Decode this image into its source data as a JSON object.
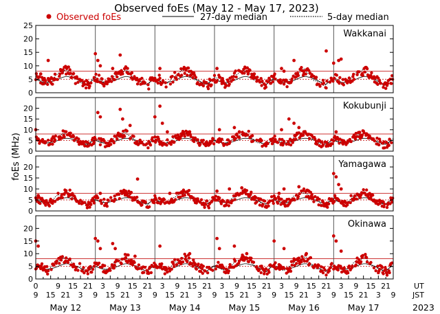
{
  "chart_data": {
    "type": "scatter",
    "title": "Observed foEs (May 12 - May 17, 2023)",
    "ylabel": "foEs (MHz)",
    "legend": {
      "observed": "Observed foEs",
      "median27": "27-day median",
      "median5": "5-day median",
      "placement": "top"
    },
    "colors": {
      "observed": "#cc0000",
      "median_line": "#000000",
      "threshold": "#cc3333"
    },
    "ylim": [
      0,
      25
    ],
    "yticks": [
      0,
      5,
      10,
      15,
      20,
      25
    ],
    "xlim_hours": [
      0,
      144
    ],
    "x_ticks_ut": [
      "0",
      "9",
      "15",
      "21",
      "3",
      "9",
      "15",
      "21",
      "3",
      "9",
      "15",
      "21",
      "3",
      "9",
      "15",
      "21",
      "3",
      "9",
      "15",
      "21",
      "3",
      "9",
      "15",
      "21",
      "3",
      "9"
    ],
    "x_ticks_jst": [
      "9",
      "15",
      "21",
      "3",
      "9",
      "15",
      "21",
      "3",
      "9",
      "15",
      "21",
      "3",
      "9",
      "15",
      "21",
      "3",
      "9",
      "15",
      "21",
      "3",
      "9",
      "15",
      "21",
      "3",
      "9"
    ],
    "ut_label": "UT",
    "jst_label": "JST",
    "days": [
      "May 12",
      "May 13",
      "May 14",
      "May 15",
      "May 16",
      "May 17"
    ],
    "year": "2023",
    "threshold_levels": [
      5,
      8
    ],
    "grid": false,
    "panels": [
      {
        "station": "Wakkanai",
        "ylim": [
          0,
          25
        ],
        "yticks": [
          0,
          5,
          10,
          15,
          20,
          25
        ],
        "median27_hourly": [
          5,
          4.6,
          4.2,
          3.9,
          3.8,
          3.9,
          4.1,
          4.3,
          4.6,
          5,
          5.4,
          5.8,
          6,
          6,
          5.8,
          5.5,
          5.2,
          4.8,
          4.3,
          3.8,
          3.3,
          3.2,
          4,
          4.8
        ],
        "median5_hourly": [
          5.5,
          5,
          4.5,
          4,
          3.5,
          3.8,
          4.5,
          5.5,
          6.5,
          7,
          7.5,
          8,
          8.5,
          8,
          7,
          6,
          5,
          4.5,
          4,
          3.5,
          3,
          3,
          4,
          5
        ],
        "observed_peaks": [
          {
            "x": 2,
            "y": 7
          },
          {
            "x": 5,
            "y": 12
          },
          {
            "x": 24,
            "y": 14.5
          },
          {
            "x": 25,
            "y": 12
          },
          {
            "x": 26,
            "y": 10
          },
          {
            "x": 31,
            "y": 9
          },
          {
            "x": 34,
            "y": 14
          },
          {
            "x": 50,
            "y": 9
          },
          {
            "x": 73,
            "y": 9
          },
          {
            "x": 88,
            "y": 7
          },
          {
            "x": 99,
            "y": 9
          },
          {
            "x": 100,
            "y": 8
          },
          {
            "x": 104,
            "y": 12
          },
          {
            "x": 108,
            "y": 8
          },
          {
            "x": 117,
            "y": 15.5
          },
          {
            "x": 120,
            "y": 11
          },
          {
            "x": 122,
            "y": 12
          },
          {
            "x": 123,
            "y": 12.5
          }
        ]
      },
      {
        "station": "Kokubunji",
        "ylim": [
          0,
          25
        ],
        "yticks": [
          0,
          5,
          10,
          15,
          20
        ],
        "median27_hourly": [
          5,
          4.6,
          4.2,
          3.9,
          3.8,
          3.9,
          4.1,
          4.3,
          4.6,
          5,
          5.4,
          5.8,
          6,
          6,
          5.8,
          5.5,
          5.2,
          4.8,
          4.3,
          3.8,
          3.3,
          3.2,
          4,
          4.8
        ],
        "median5_hourly": [
          5.5,
          5,
          4.5,
          4,
          3.5,
          3.8,
          4.5,
          5.5,
          6.5,
          7,
          7.5,
          8,
          8.5,
          8,
          7,
          6,
          5,
          4.5,
          4,
          3.5,
          3,
          3,
          4,
          5
        ],
        "observed_peaks": [
          {
            "x": 0,
            "y": 10
          },
          {
            "x": 25,
            "y": 18
          },
          {
            "x": 26,
            "y": 16
          },
          {
            "x": 34,
            "y": 19.5
          },
          {
            "x": 35,
            "y": 15
          },
          {
            "x": 38,
            "y": 12
          },
          {
            "x": 48,
            "y": 16
          },
          {
            "x": 50,
            "y": 21
          },
          {
            "x": 51,
            "y": 13
          },
          {
            "x": 53,
            "y": 9
          },
          {
            "x": 62,
            "y": 9
          },
          {
            "x": 74,
            "y": 10
          },
          {
            "x": 80,
            "y": 11
          },
          {
            "x": 82,
            "y": 9
          },
          {
            "x": 99,
            "y": 10
          },
          {
            "x": 102,
            "y": 15
          },
          {
            "x": 104,
            "y": 13
          },
          {
            "x": 106,
            "y": 11
          },
          {
            "x": 108,
            "y": 9
          },
          {
            "x": 121,
            "y": 9
          }
        ]
      },
      {
        "station": "Yamagawa",
        "ylim": [
          0,
          25
        ],
        "yticks": [
          0,
          5,
          10,
          15,
          20
        ],
        "median27_hourly": [
          5,
          4.6,
          4.2,
          3.9,
          3.8,
          3.9,
          4.1,
          4.3,
          4.6,
          5,
          5.4,
          5.8,
          6,
          6,
          5.8,
          5.5,
          5.2,
          4.8,
          4.3,
          3.8,
          3.3,
          3.2,
          4,
          4.8
        ],
        "median5_hourly": [
          5.5,
          5,
          4.5,
          4,
          3.5,
          3.8,
          4.5,
          5.5,
          6.5,
          7,
          7.5,
          8,
          8.5,
          8,
          7,
          6,
          5,
          4.5,
          4,
          3.5,
          3,
          3,
          4,
          5
        ],
        "observed_peaks": [
          {
            "x": 1,
            "y": 7
          },
          {
            "x": 26,
            "y": 8
          },
          {
            "x": 36,
            "y": 9
          },
          {
            "x": 41,
            "y": 14.5
          },
          {
            "x": 54,
            "y": 8
          },
          {
            "x": 73,
            "y": 9
          },
          {
            "x": 78,
            "y": 10
          },
          {
            "x": 83,
            "y": 10.5
          },
          {
            "x": 98,
            "y": 8
          },
          {
            "x": 100,
            "y": 10
          },
          {
            "x": 106,
            "y": 11
          },
          {
            "x": 110,
            "y": 9
          },
          {
            "x": 120,
            "y": 17
          },
          {
            "x": 121,
            "y": 15.5
          },
          {
            "x": 122,
            "y": 12
          },
          {
            "x": 123,
            "y": 10
          }
        ]
      },
      {
        "station": "Okinawa",
        "ylim": [
          0,
          25
        ],
        "yticks": [
          0,
          5,
          10,
          15,
          20
        ],
        "median27_hourly": [
          5,
          4.6,
          4.2,
          3.9,
          3.8,
          3.9,
          4.1,
          4.3,
          4.6,
          5,
          5.4,
          5.8,
          6,
          6,
          5.8,
          5.5,
          5.2,
          4.8,
          4.3,
          3.8,
          3.3,
          3.2,
          4,
          4.8
        ],
        "median5_hourly": [
          5.5,
          5,
          4.5,
          4,
          3.5,
          3.8,
          4.5,
          5.5,
          6.5,
          7,
          7.5,
          8,
          8.5,
          8,
          7,
          6,
          5,
          4.5,
          4,
          3.5,
          3,
          3,
          4,
          5
        ],
        "observed_peaks": [
          {
            "x": 0,
            "y": 15
          },
          {
            "x": 1,
            "y": 13
          },
          {
            "x": 24,
            "y": 16
          },
          {
            "x": 25,
            "y": 15
          },
          {
            "x": 26,
            "y": 12
          },
          {
            "x": 31,
            "y": 14
          },
          {
            "x": 32,
            "y": 12
          },
          {
            "x": 40,
            "y": 9
          },
          {
            "x": 50,
            "y": 13
          },
          {
            "x": 62,
            "y": 10
          },
          {
            "x": 73,
            "y": 16
          },
          {
            "x": 74,
            "y": 12
          },
          {
            "x": 80,
            "y": 13
          },
          {
            "x": 85,
            "y": 10
          },
          {
            "x": 96,
            "y": 15
          },
          {
            "x": 100,
            "y": 12
          },
          {
            "x": 109,
            "y": 10
          },
          {
            "x": 120,
            "y": 17
          },
          {
            "x": 121,
            "y": 15
          },
          {
            "x": 123,
            "y": 11
          }
        ]
      }
    ]
  }
}
